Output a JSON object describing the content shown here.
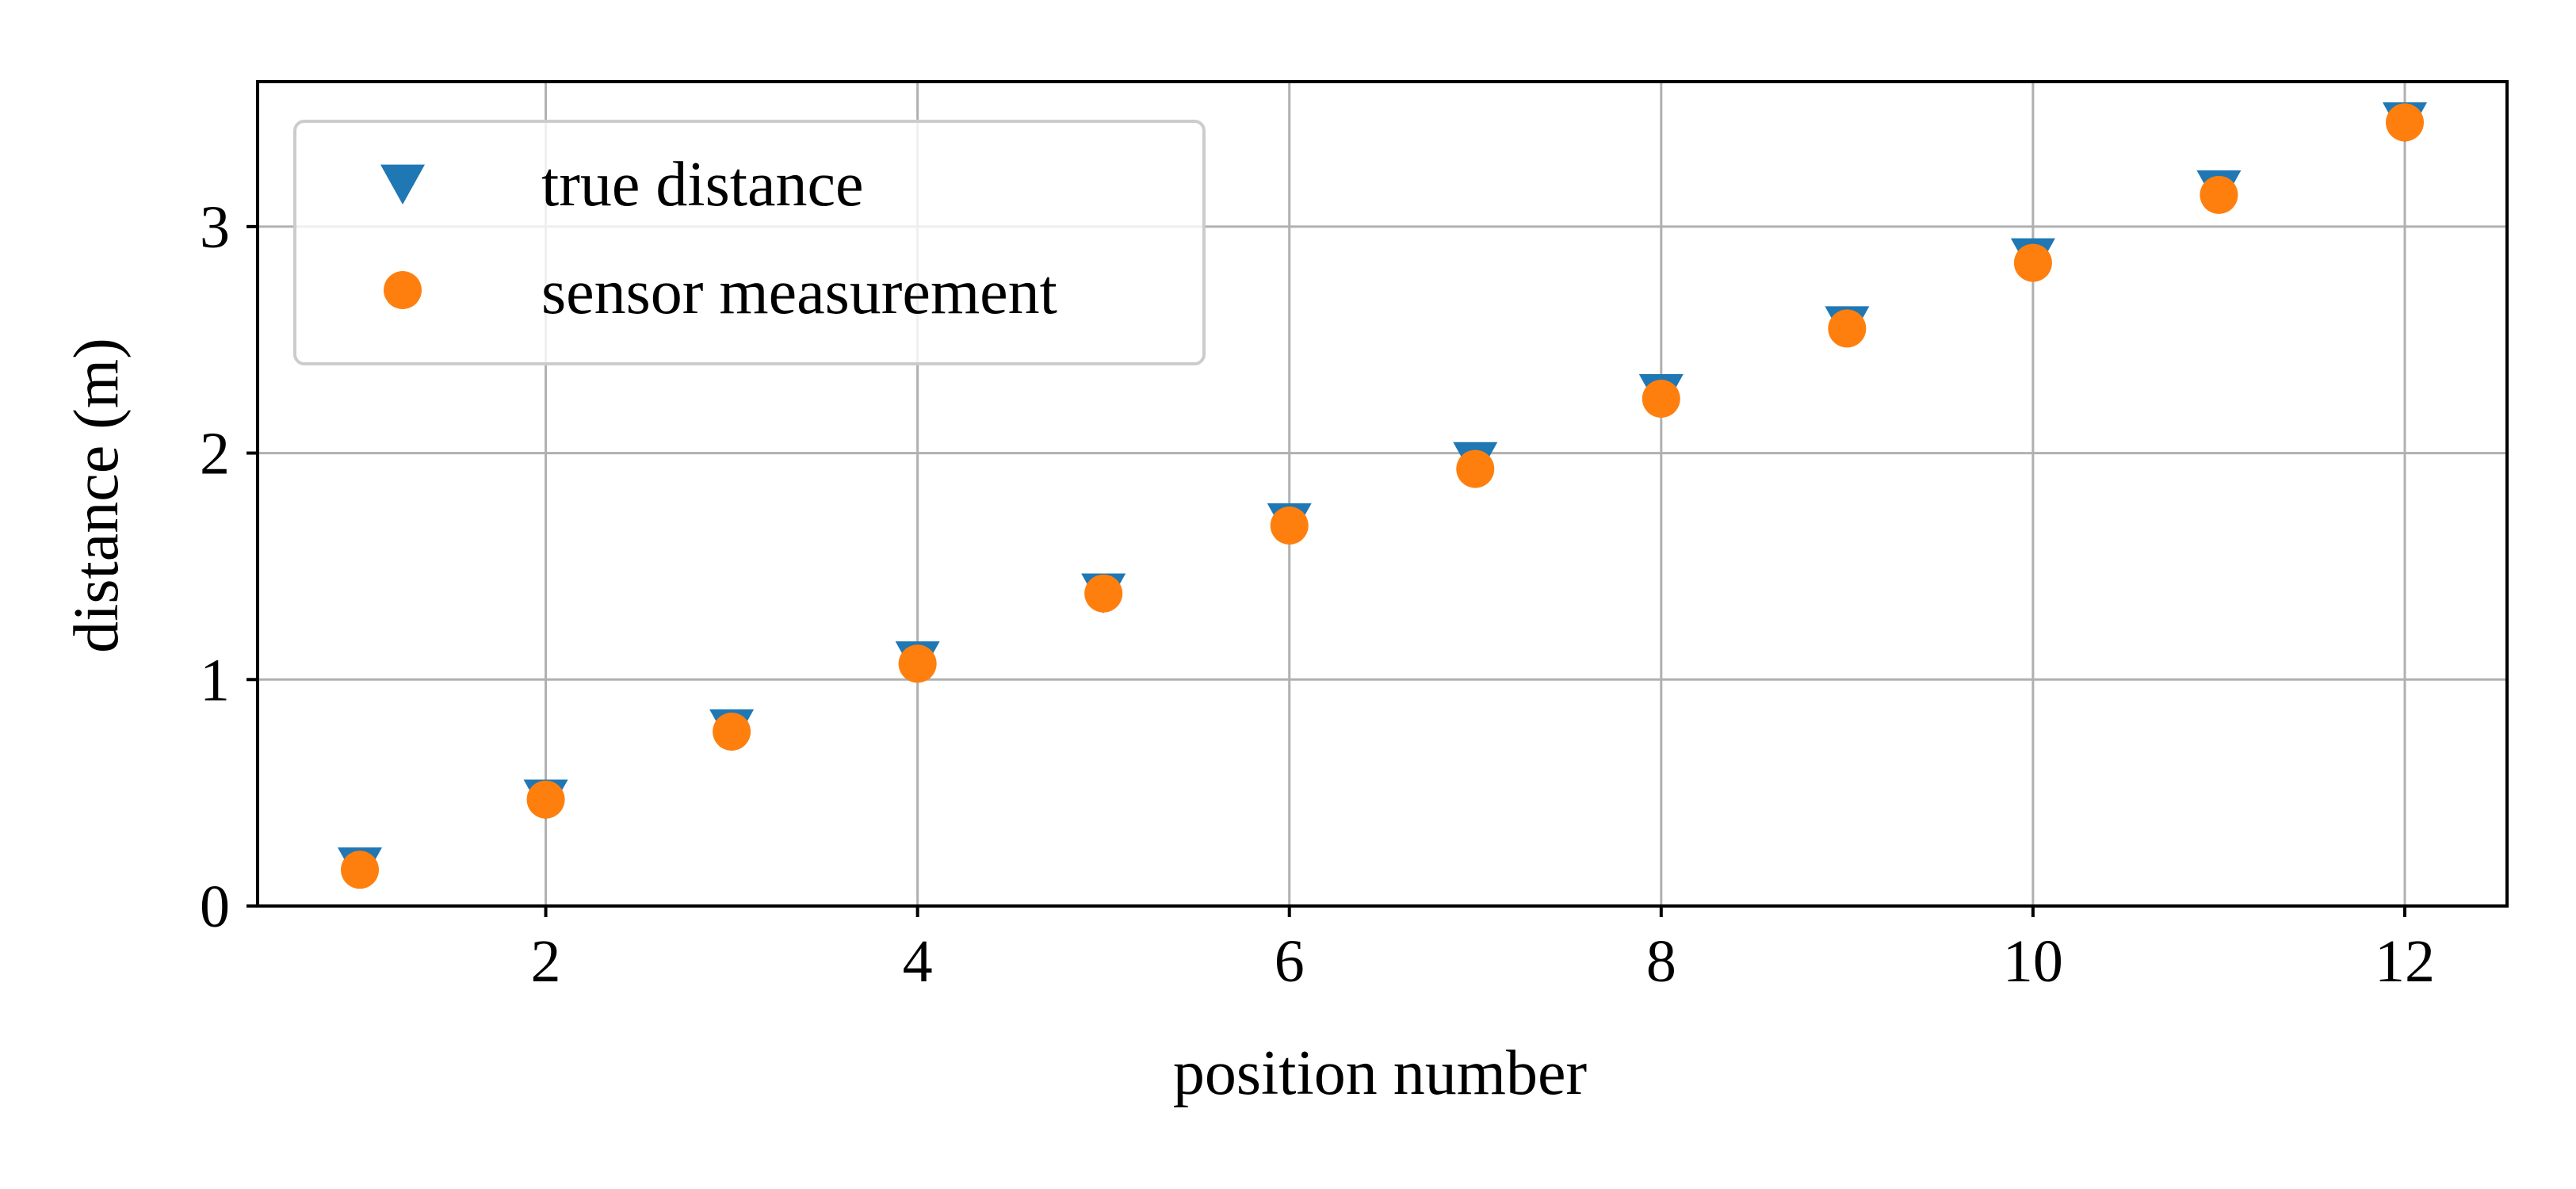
{
  "chart_data": {
    "type": "scatter",
    "title": "",
    "xlabel": "position number",
    "ylabel": "distance (m)",
    "xlim": [
      0.45,
      12.55
    ],
    "ylim": [
      0,
      3.64
    ],
    "xticks": [
      2,
      4,
      6,
      8,
      10,
      12
    ],
    "yticks": [
      0,
      1,
      2,
      3
    ],
    "grid": true,
    "legend_position": "top-left",
    "series": [
      {
        "name": "true distance",
        "marker": "triangle-down",
        "color": "#1f77b4",
        "x": [
          1,
          2,
          3,
          4,
          5,
          6,
          7,
          8,
          9,
          10,
          11,
          12
        ],
        "y": [
          0.18,
          0.48,
          0.79,
          1.09,
          1.39,
          1.7,
          1.97,
          2.27,
          2.57,
          2.87,
          3.17,
          3.47
        ]
      },
      {
        "name": "sensor measurement",
        "marker": "circle",
        "color": "#ff7f0e",
        "x": [
          1,
          2,
          3,
          4,
          5,
          6,
          7,
          8,
          9,
          10,
          11,
          12
        ],
        "y": [
          0.16,
          0.47,
          0.77,
          1.07,
          1.38,
          1.68,
          1.93,
          2.24,
          2.55,
          2.84,
          3.14,
          3.46
        ]
      }
    ]
  }
}
